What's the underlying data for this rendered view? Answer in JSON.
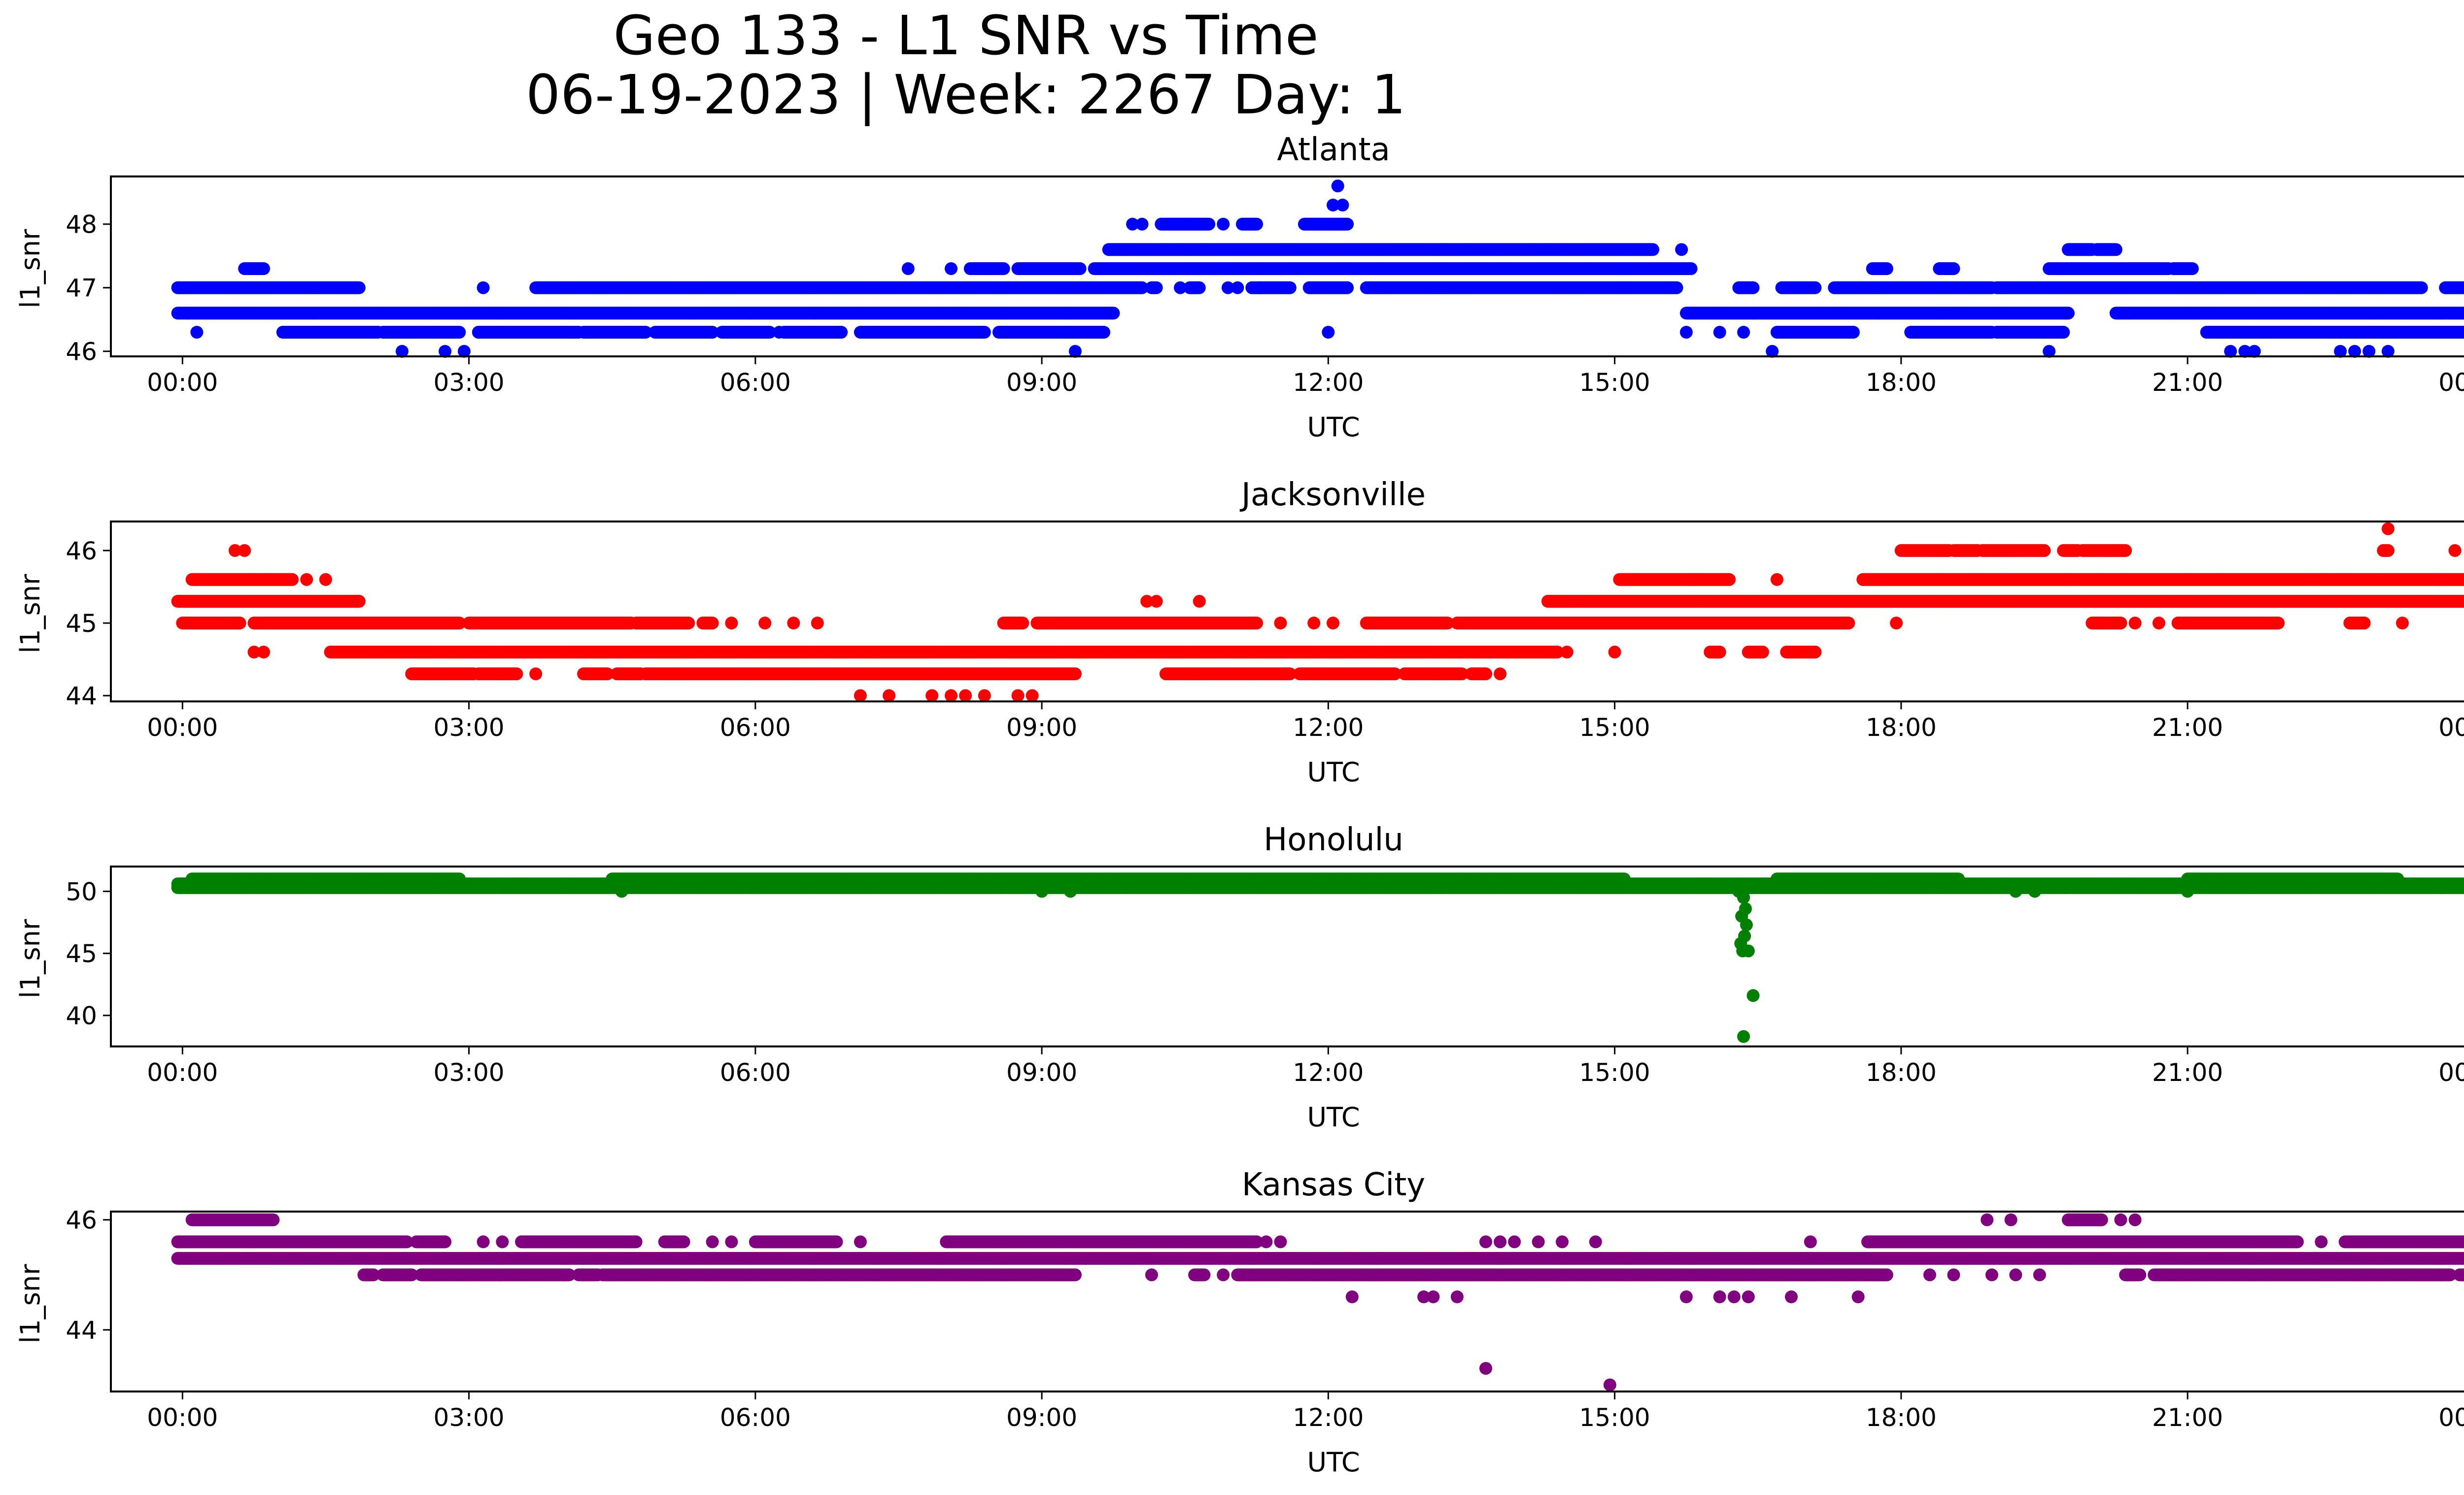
{
  "figure": {
    "title_line1": "Geo 133 - L1 SNR vs Time",
    "title_line2": "06-19-2023 | Week: 2267 Day: 1"
  },
  "chart_data": [
    {
      "type": "scatter",
      "title": "Atlanta",
      "xlabel": "UTC",
      "ylabel": "l1_snr",
      "color": "#0000ff",
      "xlim": [
        -0.75,
        24.85
      ],
      "ylim": [
        45.92,
        48.75
      ],
      "x_ticks": [
        "00:00",
        "03:00",
        "06:00",
        "09:00",
        "12:00",
        "15:00",
        "18:00",
        "21:00",
        "00:00"
      ],
      "y_ticks": [
        46,
        47,
        48
      ],
      "levels": [
        {
          "y": 46.0,
          "x": [
            2.3,
            2.75,
            2.95,
            9.35,
            16.65,
            19.55,
            21.45,
            21.6,
            21.7,
            22.6,
            22.75,
            22.9,
            23.1
          ]
        },
        {
          "y": 46.3,
          "x": [
            0.15,
            1.1,
            1.35,
            1.6,
            3.1,
            3.55,
            4.55,
            5.3,
            6.25,
            7.2,
            7.6,
            7.9,
            8.15,
            8.85,
            9.25,
            9.55,
            12.0,
            15.75,
            16.1,
            16.35,
            18.7,
            19.35,
            19.6,
            21.2,
            21.55,
            22.1,
            22.7,
            23.3,
            23.6
          ]
        },
        {
          "y": 46.3,
          "ranges": [
            [
              1.05,
              2.05
            ],
            [
              2.1,
              2.9
            ],
            [
              3.1,
              4.15
            ],
            [
              4.2,
              4.85
            ],
            [
              4.95,
              5.55
            ],
            [
              5.65,
              6.15
            ],
            [
              6.3,
              6.9
            ],
            [
              7.1,
              8.4
            ],
            [
              8.55,
              9.2
            ],
            [
              9.2,
              9.65
            ],
            [
              16.7,
              17.5
            ],
            [
              18.1,
              18.95
            ],
            [
              19.0,
              19.7
            ],
            [
              21.2,
              24.05
            ]
          ]
        },
        {
          "y": 46.6,
          "ranges": [
            [
              -0.05,
              9.75
            ],
            [
              15.75,
              19.75
            ],
            [
              20.25,
              24.05
            ]
          ]
        },
        {
          "y": 47.0,
          "ranges": [
            [
              -0.05,
              1.85
            ],
            [
              3.7,
              10.05
            ],
            [
              10.15,
              10.2
            ],
            [
              10.55,
              10.65
            ],
            [
              11.2,
              11.6
            ],
            [
              11.8,
              12.2
            ],
            [
              12.4,
              15.65
            ],
            [
              16.3,
              16.45
            ],
            [
              16.75,
              17.1
            ],
            [
              17.3,
              18.95
            ],
            [
              19.0,
              23.45
            ],
            [
              23.7,
              24.05
            ]
          ],
          "x": [
            3.15,
            10.45,
            10.95,
            11.05,
            11.3
          ]
        },
        {
          "y": 47.3,
          "ranges": [
            [
              0.65,
              0.85
            ],
            [
              8.25,
              8.6
            ],
            [
              8.75,
              9.4
            ],
            [
              9.55,
              15.8
            ],
            [
              17.7,
              17.85
            ],
            [
              18.4,
              18.55
            ],
            [
              19.55,
              20.8
            ],
            [
              20.85,
              21.05
            ]
          ],
          "x": [
            7.6,
            8.05
          ]
        },
        {
          "y": 47.6,
          "ranges": [
            [
              9.7,
              15.4
            ],
            [
              19.75,
              20.0
            ],
            [
              20.05,
              20.25
            ]
          ],
          "x": [
            15.7
          ]
        },
        {
          "y": 48.0,
          "ranges": [
            [
              10.25,
              10.75
            ],
            [
              11.1,
              11.25
            ],
            [
              11.75,
              12.2
            ]
          ],
          "x": [
            9.95,
            10.05,
            10.9
          ]
        },
        {
          "y": 48.3,
          "x": [
            12.05,
            12.15
          ]
        },
        {
          "y": 48.6,
          "x": [
            12.1
          ]
        }
      ]
    },
    {
      "type": "scatter",
      "title": "Jacksonville",
      "xlabel": "UTC",
      "ylabel": "l1_snr",
      "color": "#ff0000",
      "xlim": [
        -0.75,
        24.85
      ],
      "ylim": [
        43.92,
        46.4
      ],
      "x_ticks": [
        "00:00",
        "03:00",
        "06:00",
        "09:00",
        "12:00",
        "15:00",
        "18:00",
        "21:00",
        "00:00"
      ],
      "y_ticks": [
        44,
        45,
        46
      ],
      "levels": [
        {
          "y": 44.0,
          "x": [
            7.1,
            7.4,
            7.85,
            8.05,
            8.2,
            8.4,
            8.75,
            8.9
          ]
        },
        {
          "y": 44.3,
          "ranges": [
            [
              2.4,
              3.05
            ],
            [
              3.1,
              3.5
            ],
            [
              4.2,
              4.45
            ],
            [
              4.55,
              4.8
            ],
            [
              4.85,
              9.35
            ],
            [
              10.3,
              11.6
            ],
            [
              11.7,
              12.7
            ],
            [
              12.8,
              13.4
            ],
            [
              13.5,
              13.65
            ]
          ],
          "x": [
            3.7,
            10.65,
            13.8
          ]
        },
        {
          "y": 44.6,
          "ranges": [
            [
              1.55,
              14.4
            ],
            [
              16.0,
              16.1
            ],
            [
              16.4,
              16.55
            ],
            [
              16.8,
              17.1
            ]
          ],
          "x": [
            0.75,
            0.85,
            14.5,
            15.0
          ]
        },
        {
          "y": 45.0,
          "ranges": [
            [
              0.0,
              0.6
            ],
            [
              0.75,
              2.9
            ],
            [
              3.0,
              4.7
            ],
            [
              4.75,
              5.3
            ],
            [
              5.45,
              5.55
            ],
            [
              8.6,
              8.8
            ],
            [
              8.95,
              11.25
            ],
            [
              12.4,
              13.25
            ],
            [
              13.35,
              17.45
            ]
          ],
          "x": [
            5.75,
            6.1,
            6.4,
            6.65,
            11.5,
            11.85,
            12.05,
            17.95,
            20.1,
            20.45,
            20.7,
            21.05,
            22.85,
            23.25
          ]
        },
        {
          "y": 45.0,
          "ranges": [
            [
              20.0,
              20.3
            ],
            [
              20.9,
              21.95
            ],
            [
              22.7,
              22.85
            ]
          ]
        },
        {
          "y": 45.3,
          "ranges": [
            [
              -0.05,
              1.85
            ],
            [
              14.3,
              24.05
            ]
          ],
          "x": [
            10.1,
            10.2,
            10.65
          ]
        },
        {
          "y": 45.6,
          "ranges": [
            [
              0.1,
              1.15
            ],
            [
              15.05,
              16.2
            ],
            [
              17.6,
              24.05
            ]
          ],
          "x": [
            1.3,
            1.5,
            16.7
          ]
        },
        {
          "y": 46.0,
          "ranges": [
            [
              18.0,
              18.5
            ],
            [
              18.55,
              18.8
            ],
            [
              18.85,
              19.5
            ],
            [
              19.7,
              19.85
            ],
            [
              19.9,
              20.35
            ],
            [
              23.05,
              23.1
            ]
          ],
          "x": [
            0.55,
            0.65,
            23.8
          ]
        },
        {
          "y": 46.3,
          "x": [
            23.1
          ]
        }
      ]
    },
    {
      "type": "scatter",
      "title": "Honolulu",
      "xlabel": "UTC",
      "ylabel": "l1_snr",
      "color": "#008000",
      "xlim": [
        -0.75,
        24.85
      ],
      "ylim": [
        37.5,
        52.0
      ],
      "x_ticks": [
        "00:00",
        "03:00",
        "06:00",
        "09:00",
        "12:00",
        "15:00",
        "18:00",
        "21:00",
        "00:00"
      ],
      "y_ticks": [
        40,
        45,
        50
      ],
      "levels": [
        {
          "y": 50.3,
          "ranges": [
            [
              -0.05,
              24.05
            ]
          ]
        },
        {
          "y": 50.6,
          "ranges": [
            [
              -0.05,
              24.05
            ]
          ]
        },
        {
          "y": 51.0,
          "ranges": [
            [
              0.1,
              2.9
            ],
            [
              4.5,
              15.1
            ],
            [
              16.7,
              18.6
            ],
            [
              21.0,
              23.2
            ]
          ]
        },
        {
          "y": 50.0,
          "x": [
            4.6,
            9.0,
            9.3,
            16.3,
            19.2,
            19.4,
            21.0
          ]
        },
        {
          "y": 49.5,
          "x": [
            16.35
          ]
        },
        {
          "y": 48.6,
          "x": [
            16.37
          ]
        },
        {
          "y": 48.0,
          "x": [
            16.33
          ]
        },
        {
          "y": 47.3,
          "x": [
            16.38
          ]
        },
        {
          "y": 46.4,
          "x": [
            16.36
          ]
        },
        {
          "y": 45.8,
          "x": [
            16.32
          ]
        },
        {
          "y": 45.2,
          "x": [
            16.34,
            16.4
          ]
        },
        {
          "y": 41.6,
          "x": [
            16.45
          ]
        },
        {
          "y": 38.3,
          "x": [
            16.35
          ]
        }
      ]
    },
    {
      "type": "scatter",
      "title": "Kansas City",
      "xlabel": "UTC",
      "ylabel": "l1_snr",
      "color": "#800080",
      "xlim": [
        -0.75,
        24.85
      ],
      "ylim": [
        42.88,
        46.15
      ],
      "x_ticks": [
        "00:00",
        "03:00",
        "06:00",
        "09:00",
        "12:00",
        "15:00",
        "18:00",
        "21:00",
        "00:00"
      ],
      "y_ticks": [
        44,
        46
      ],
      "levels": [
        {
          "y": 43.0,
          "x": [
            14.95
          ]
        },
        {
          "y": 43.3,
          "x": [
            13.65
          ]
        },
        {
          "y": 44.6,
          "x": [
            12.25,
            13.0,
            13.1,
            13.35,
            15.75,
            16.1,
            16.25,
            16.4,
            16.85,
            17.55
          ]
        },
        {
          "y": 45.0,
          "ranges": [
            [
              1.9,
              2.0
            ],
            [
              2.1,
              2.4
            ],
            [
              2.5,
              4.05
            ],
            [
              4.15,
              4.35
            ],
            [
              4.4,
              9.35
            ],
            [
              10.6,
              10.7
            ],
            [
              11.05,
              17.85
            ],
            [
              20.35,
              20.5
            ],
            [
              20.65,
              23.75
            ],
            [
              23.85,
              24.05
            ]
          ],
          "x": [
            8.0,
            10.15,
            10.9,
            18.3,
            18.55,
            18.95,
            19.2,
            19.45
          ]
        },
        {
          "y": 45.3,
          "ranges": [
            [
              -0.05,
              24.05
            ]
          ]
        },
        {
          "y": 45.6,
          "ranges": [
            [
              -0.05,
              2.35
            ],
            [
              2.45,
              2.75
            ],
            [
              3.55,
              4.75
            ],
            [
              5.05,
              5.25
            ],
            [
              6.0,
              6.85
            ],
            [
              8.0,
              11.25
            ],
            [
              17.65,
              22.15
            ],
            [
              22.65,
              24.05
            ]
          ],
          "x": [
            3.15,
            3.35,
            5.55,
            5.75,
            7.1,
            11.35,
            11.5,
            13.65,
            13.8,
            13.95,
            14.2,
            14.45,
            14.8,
            17.05,
            22.4
          ]
        },
        {
          "y": 46.0,
          "ranges": [
            [
              0.1,
              0.95
            ],
            [
              19.75,
              20.1
            ]
          ],
          "x": [
            18.9,
            19.15,
            20.3,
            20.45
          ]
        }
      ]
    }
  ]
}
